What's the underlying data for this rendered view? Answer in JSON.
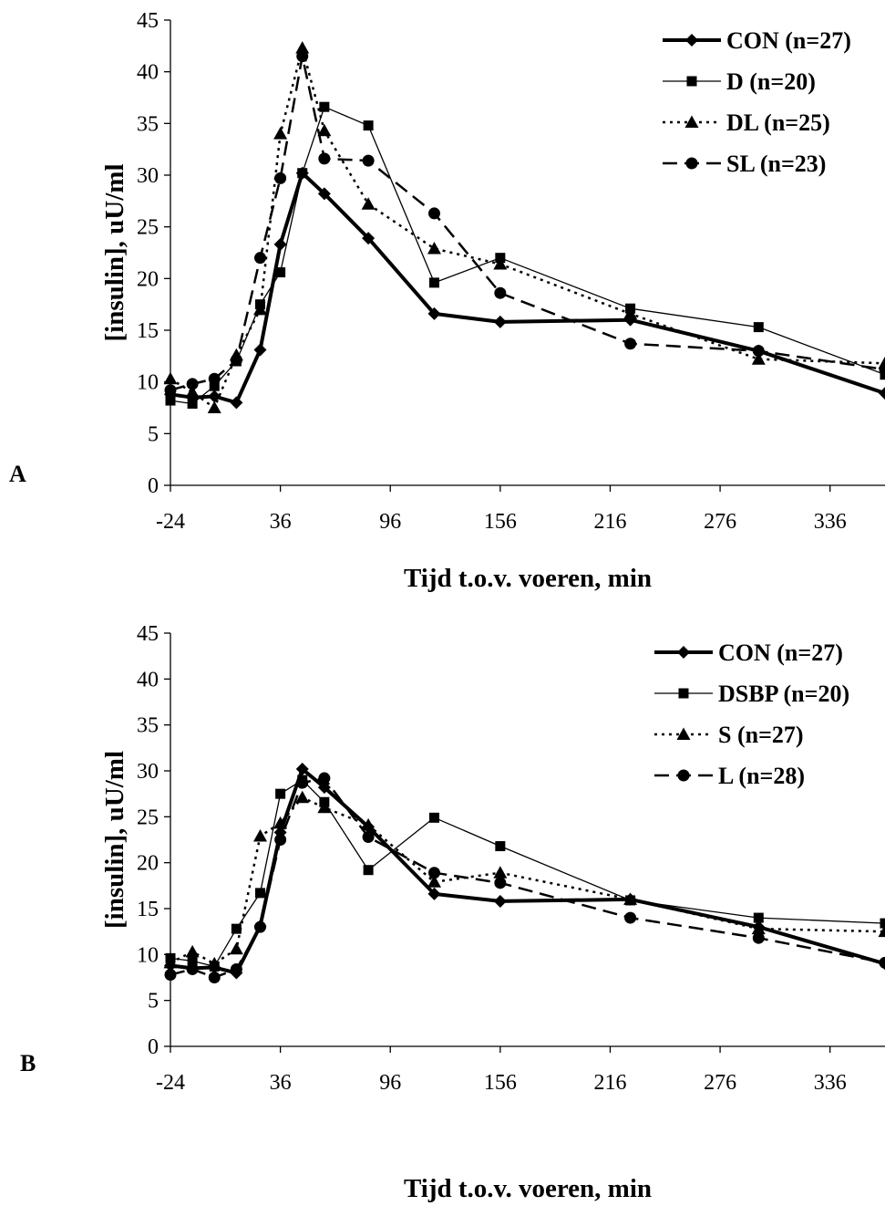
{
  "colors": {
    "line": "#000000",
    "background": "#ffffff"
  },
  "chart_data": [
    {
      "type": "line",
      "panel_label": "A",
      "xlabel": "Tijd t.o.v. voeren, min",
      "ylabel": "[insulin], uU/ml",
      "xlim": [
        -24,
        366
      ],
      "ylim": [
        0,
        45
      ],
      "x_ticks": [
        -24,
        36,
        96,
        156,
        216,
        276,
        336
      ],
      "y_ticks": [
        0,
        5,
        10,
        15,
        20,
        25,
        30,
        35,
        40,
        45
      ],
      "grid": false,
      "legend_position": "top-right",
      "series": [
        {
          "name": "CON (n=27)",
          "line": "solid-thick",
          "marker": "diamond",
          "points": [
            [
              -24,
              8.8
            ],
            [
              -12,
              8.5
            ],
            [
              0,
              8.6
            ],
            [
              12,
              8.0
            ],
            [
              25,
              13.1
            ],
            [
              36,
              23.3
            ],
            [
              48,
              30.2
            ],
            [
              60,
              28.2
            ],
            [
              84,
              23.9
            ],
            [
              120,
              16.6
            ],
            [
              156,
              15.8
            ],
            [
              227,
              16.0
            ],
            [
              297,
              13.0
            ],
            [
              366,
              8.9
            ]
          ]
        },
        {
          "name": "D (n=20)",
          "line": "solid-thin",
          "marker": "square",
          "points": [
            [
              -24,
              8.2
            ],
            [
              -12,
              7.9
            ],
            [
              0,
              9.6
            ],
            [
              12,
              12.0
            ],
            [
              25,
              17.5
            ],
            [
              36,
              20.6
            ],
            [
              48,
              30.2
            ],
            [
              60,
              36.6
            ],
            [
              84,
              34.8
            ],
            [
              120,
              19.6
            ],
            [
              156,
              22.0
            ],
            [
              227,
              17.1
            ],
            [
              297,
              15.3
            ],
            [
              366,
              10.7
            ]
          ]
        },
        {
          "name": "DL (n=25)",
          "line": "dotted",
          "marker": "triangle",
          "points": [
            [
              -24,
              10.3
            ],
            [
              -12,
              9.0
            ],
            [
              0,
              7.5
            ],
            [
              12,
              12.6
            ],
            [
              25,
              17.0
            ],
            [
              36,
              34.0
            ],
            [
              48,
              42.3
            ],
            [
              60,
              34.3
            ],
            [
              84,
              27.2
            ],
            [
              120,
              22.9
            ],
            [
              156,
              21.4
            ],
            [
              227,
              16.6
            ],
            [
              297,
              12.2
            ],
            [
              366,
              11.8
            ]
          ]
        },
        {
          "name": "SL (n=23)",
          "line": "dashed",
          "marker": "circle",
          "points": [
            [
              -24,
              9.2
            ],
            [
              -12,
              9.8
            ],
            [
              0,
              10.3
            ],
            [
              12,
              12.1
            ],
            [
              25,
              22.0
            ],
            [
              36,
              29.7
            ],
            [
              48,
              41.5
            ],
            [
              60,
              31.6
            ],
            [
              84,
              31.4
            ],
            [
              120,
              26.3
            ],
            [
              156,
              18.6
            ],
            [
              227,
              13.7
            ],
            [
              297,
              13.0
            ],
            [
              366,
              11.2
            ]
          ]
        }
      ]
    },
    {
      "type": "line",
      "panel_label": "B",
      "xlabel": "Tijd t.o.v. voeren, min",
      "ylabel": "[insulin], uU/ml",
      "xlim": [
        -24,
        366
      ],
      "ylim": [
        0,
        45
      ],
      "x_ticks": [
        -24,
        36,
        96,
        156,
        216,
        276,
        336
      ],
      "y_ticks": [
        0,
        5,
        10,
        15,
        20,
        25,
        30,
        35,
        40,
        45
      ],
      "grid": false,
      "legend_position": "top-right",
      "series": [
        {
          "name": "CON (n=27)",
          "line": "solid-thick",
          "marker": "diamond",
          "points": [
            [
              -24,
              8.8
            ],
            [
              -12,
              8.5
            ],
            [
              0,
              8.6
            ],
            [
              12,
              8.0
            ],
            [
              25,
              13.1
            ],
            [
              36,
              23.3
            ],
            [
              48,
              30.2
            ],
            [
              60,
              28.2
            ],
            [
              84,
              23.9
            ],
            [
              120,
              16.6
            ],
            [
              156,
              15.8
            ],
            [
              227,
              16.0
            ],
            [
              297,
              13.0
            ],
            [
              366,
              9.0
            ]
          ]
        },
        {
          "name": "DSBP (n=20)",
          "line": "solid-thin",
          "marker": "square",
          "points": [
            [
              -24,
              9.6
            ],
            [
              -12,
              9.3
            ],
            [
              0,
              8.7
            ],
            [
              12,
              12.8
            ],
            [
              25,
              16.7
            ],
            [
              36,
              27.5
            ],
            [
              48,
              29.0
            ],
            [
              60,
              26.6
            ],
            [
              84,
              19.2
            ],
            [
              120,
              24.9
            ],
            [
              156,
              21.8
            ],
            [
              227,
              15.9
            ],
            [
              297,
              14.0
            ],
            [
              366,
              13.4
            ]
          ]
        },
        {
          "name": "S (n=27)",
          "line": "dotted",
          "marker": "triangle",
          "points": [
            [
              -24,
              9.1
            ],
            [
              -12,
              10.3
            ],
            [
              0,
              9.0
            ],
            [
              12,
              10.6
            ],
            [
              25,
              22.9
            ],
            [
              36,
              24.3
            ],
            [
              48,
              27.1
            ],
            [
              60,
              26.0
            ],
            [
              84,
              24.1
            ],
            [
              120,
              17.9
            ],
            [
              156,
              18.9
            ],
            [
              227,
              16.0
            ],
            [
              297,
              12.8
            ],
            [
              366,
              12.5
            ]
          ]
        },
        {
          "name": "L (n=28)",
          "line": "dashed",
          "marker": "circle",
          "points": [
            [
              -24,
              7.8
            ],
            [
              -12,
              8.4
            ],
            [
              0,
              7.5
            ],
            [
              12,
              8.4
            ],
            [
              25,
              13.0
            ],
            [
              36,
              22.5
            ],
            [
              48,
              28.7
            ],
            [
              60,
              29.2
            ],
            [
              84,
              22.8
            ],
            [
              120,
              18.9
            ],
            [
              156,
              17.8
            ],
            [
              227,
              14.0
            ],
            [
              297,
              11.8
            ],
            [
              366,
              9.1
            ]
          ]
        }
      ]
    }
  ]
}
